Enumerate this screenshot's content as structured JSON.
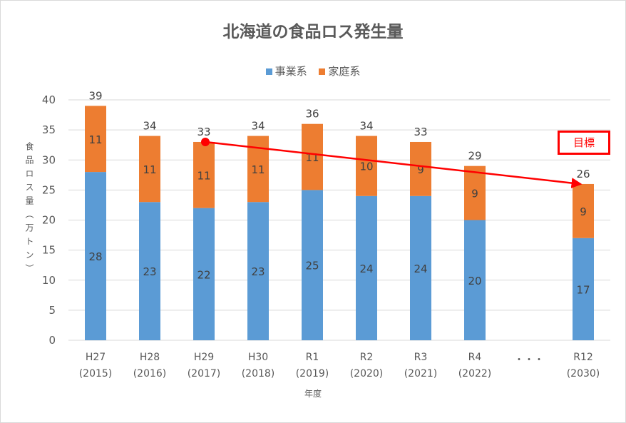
{
  "chart_data": {
    "type": "bar",
    "stacked": true,
    "title": "北海道の食品ロス発生量",
    "xlabel": "年度",
    "ylabel": "食品ロス量（万トン）",
    "ylim": [
      0,
      40
    ],
    "yticks": [
      0,
      5,
      10,
      15,
      20,
      25,
      30,
      35,
      40
    ],
    "grid": true,
    "legend_position": "top",
    "categories": [
      [
        "H27",
        "(2015)"
      ],
      [
        "H28",
        "(2016)"
      ],
      [
        "H29",
        "(2017)"
      ],
      [
        "H30",
        "(2018)"
      ],
      [
        "R1",
        "(2019)"
      ],
      [
        "R2",
        "(2020)"
      ],
      [
        "R3",
        "(2021)"
      ],
      [
        "R4",
        "(2022)"
      ],
      [
        "・・・",
        ""
      ],
      [
        "R12",
        "(2030)"
      ]
    ],
    "series": [
      {
        "name": "事業系",
        "color": "#5b9bd5",
        "values": [
          28,
          23,
          22,
          23,
          25,
          24,
          24,
          20,
          null,
          17
        ]
      },
      {
        "name": "家庭系",
        "color": "#ed7d31",
        "values": [
          11,
          11,
          11,
          11,
          11,
          10,
          9,
          9,
          null,
          9
        ]
      }
    ],
    "totals": [
      39,
      34,
      33,
      34,
      36,
      34,
      33,
      29,
      null,
      26
    ],
    "annotation": {
      "label": "目標",
      "color": "#ff0000",
      "arrow_from": {
        "category": "H29",
        "value": 33
      },
      "arrow_to": {
        "category": "R12",
        "value": 26
      }
    }
  }
}
